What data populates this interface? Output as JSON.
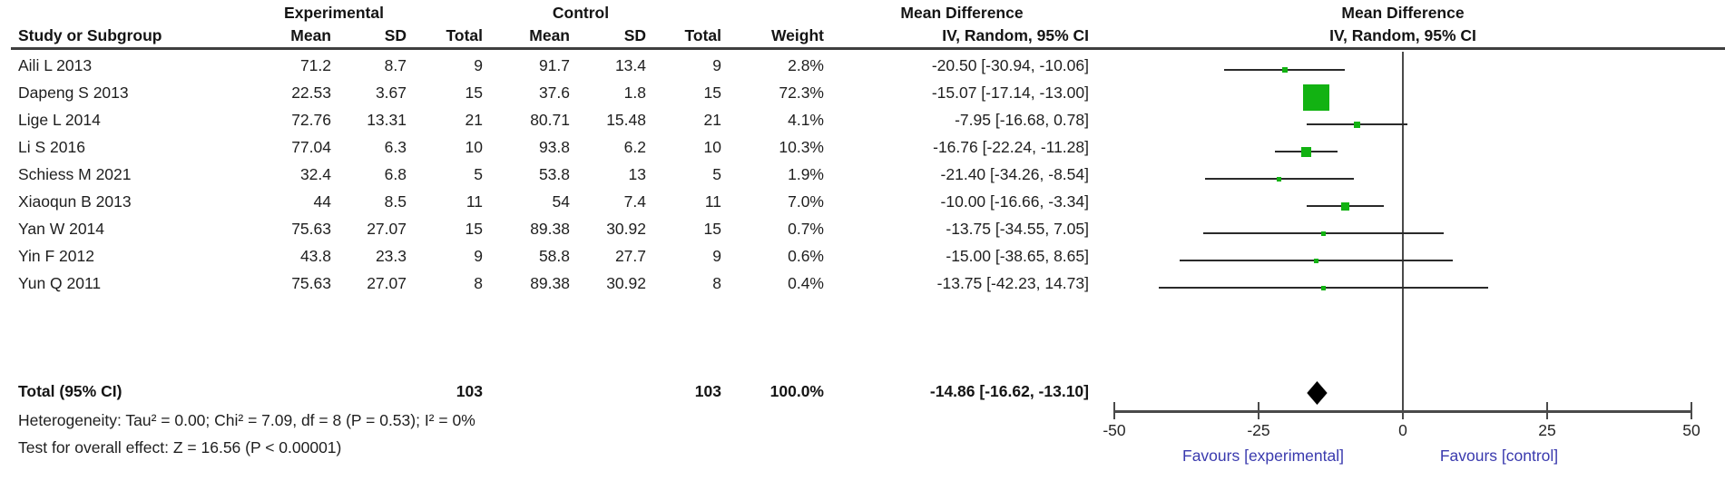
{
  "header": {
    "group_experimental": "Experimental",
    "group_control": "Control",
    "effect_left_line1": "Mean Difference",
    "effect_left_line2": "IV, Random, 95% CI",
    "effect_right_line1": "Mean Difference",
    "effect_right_line2": "IV, Random, 95% CI",
    "col_study": "Study or Subgroup",
    "col_exp_mean": "Mean",
    "col_exp_sd": "SD",
    "col_exp_total": "Total",
    "col_ctrl_mean": "Mean",
    "col_ctrl_sd": "SD",
    "col_ctrl_total": "Total",
    "col_weight": "Weight"
  },
  "chart_data": {
    "type": "forest",
    "effect_measure": "Mean Difference",
    "model": "IV, Random, 95% CI",
    "studies": [
      {
        "name": "Aili L 2013",
        "exp_mean": "71.2",
        "exp_sd": "8.7",
        "exp_total": "9",
        "ctrl_mean": "91.7",
        "ctrl_sd": "13.4",
        "ctrl_total": "9",
        "weight": "2.8%",
        "weight_pct": 2.8,
        "md": -20.5,
        "ci_low": -30.94,
        "ci_high": -10.06,
        "ci_text": "-20.50 [-30.94, -10.06]"
      },
      {
        "name": "Dapeng S 2013",
        "exp_mean": "22.53",
        "exp_sd": "3.67",
        "exp_total": "15",
        "ctrl_mean": "37.6",
        "ctrl_sd": "1.8",
        "ctrl_total": "15",
        "weight": "72.3%",
        "weight_pct": 72.3,
        "md": -15.07,
        "ci_low": -17.14,
        "ci_high": -13.0,
        "ci_text": "-15.07 [-17.14, -13.00]"
      },
      {
        "name": "Lige L 2014",
        "exp_mean": "72.76",
        "exp_sd": "13.31",
        "exp_total": "21",
        "ctrl_mean": "80.71",
        "ctrl_sd": "15.48",
        "ctrl_total": "21",
        "weight": "4.1%",
        "weight_pct": 4.1,
        "md": -7.95,
        "ci_low": -16.68,
        "ci_high": 0.78,
        "ci_text": "-7.95 [-16.68, 0.78]"
      },
      {
        "name": "Li S 2016",
        "exp_mean": "77.04",
        "exp_sd": "6.3",
        "exp_total": "10",
        "ctrl_mean": "93.8",
        "ctrl_sd": "6.2",
        "ctrl_total": "10",
        "weight": "10.3%",
        "weight_pct": 10.3,
        "md": -16.76,
        "ci_low": -22.24,
        "ci_high": -11.28,
        "ci_text": "-16.76 [-22.24, -11.28]"
      },
      {
        "name": "Schiess M 2021",
        "exp_mean": "32.4",
        "exp_sd": "6.8",
        "exp_total": "5",
        "ctrl_mean": "53.8",
        "ctrl_sd": "13",
        "ctrl_total": "5",
        "weight": "1.9%",
        "weight_pct": 1.9,
        "md": -21.4,
        "ci_low": -34.26,
        "ci_high": -8.54,
        "ci_text": "-21.40 [-34.26, -8.54]"
      },
      {
        "name": "Xiaoqun B 2013",
        "exp_mean": "44",
        "exp_sd": "8.5",
        "exp_total": "11",
        "ctrl_mean": "54",
        "ctrl_sd": "7.4",
        "ctrl_total": "11",
        "weight": "7.0%",
        "weight_pct": 7.0,
        "md": -10.0,
        "ci_low": -16.66,
        "ci_high": -3.34,
        "ci_text": "-10.00 [-16.66, -3.34]"
      },
      {
        "name": "Yan W  2014",
        "exp_mean": "75.63",
        "exp_sd": "27.07",
        "exp_total": "15",
        "ctrl_mean": "89.38",
        "ctrl_sd": "30.92",
        "ctrl_total": "15",
        "weight": "0.7%",
        "weight_pct": 0.7,
        "md": -13.75,
        "ci_low": -34.55,
        "ci_high": 7.05,
        "ci_text": "-13.75 [-34.55, 7.05]"
      },
      {
        "name": "Yin F 2012",
        "exp_mean": "43.8",
        "exp_sd": "23.3",
        "exp_total": "9",
        "ctrl_mean": "58.8",
        "ctrl_sd": "27.7",
        "ctrl_total": "9",
        "weight": "0.6%",
        "weight_pct": 0.6,
        "md": -15.0,
        "ci_low": -38.65,
        "ci_high": 8.65,
        "ci_text": "-15.00 [-38.65, 8.65]"
      },
      {
        "name": "Yun Q 2011",
        "exp_mean": "75.63",
        "exp_sd": "27.07",
        "exp_total": "8",
        "ctrl_mean": "89.38",
        "ctrl_sd": "30.92",
        "ctrl_total": "8",
        "weight": "0.4%",
        "weight_pct": 0.4,
        "md": -13.75,
        "ci_low": -42.23,
        "ci_high": 14.73,
        "ci_text": "-13.75 [-42.23, 14.73]"
      }
    ],
    "total": {
      "label": "Total (95% CI)",
      "exp_total": "103",
      "ctrl_total": "103",
      "weight": "100.0%",
      "md": -14.86,
      "ci_low": -16.62,
      "ci_high": -13.1,
      "ci_text": "-14.86 [-16.62, -13.10]"
    },
    "axis": {
      "min": -50,
      "max": 50,
      "ticks": [
        "-50",
        "-25",
        "0",
        "25",
        "50"
      ],
      "tick_values": [
        -50,
        -25,
        0,
        25,
        50
      ],
      "favours_left": "Favours [experimental]",
      "favours_right": "Favours [control]"
    },
    "footnotes": {
      "heterogeneity": "Heterogeneity: Tau² = 0.00; Chi² = 7.09, df = 8 (P = 0.53); I² = 0%",
      "overall_effect": "Test for overall effect: Z = 16.56 (P < 0.00001)"
    },
    "colors": {
      "marker_green": "#12b212",
      "diamond_black": "#000000",
      "ci_line": "#2a2a2a",
      "axis_gray": "#4a4a4a",
      "favours_blue": "#3a3aae"
    }
  }
}
